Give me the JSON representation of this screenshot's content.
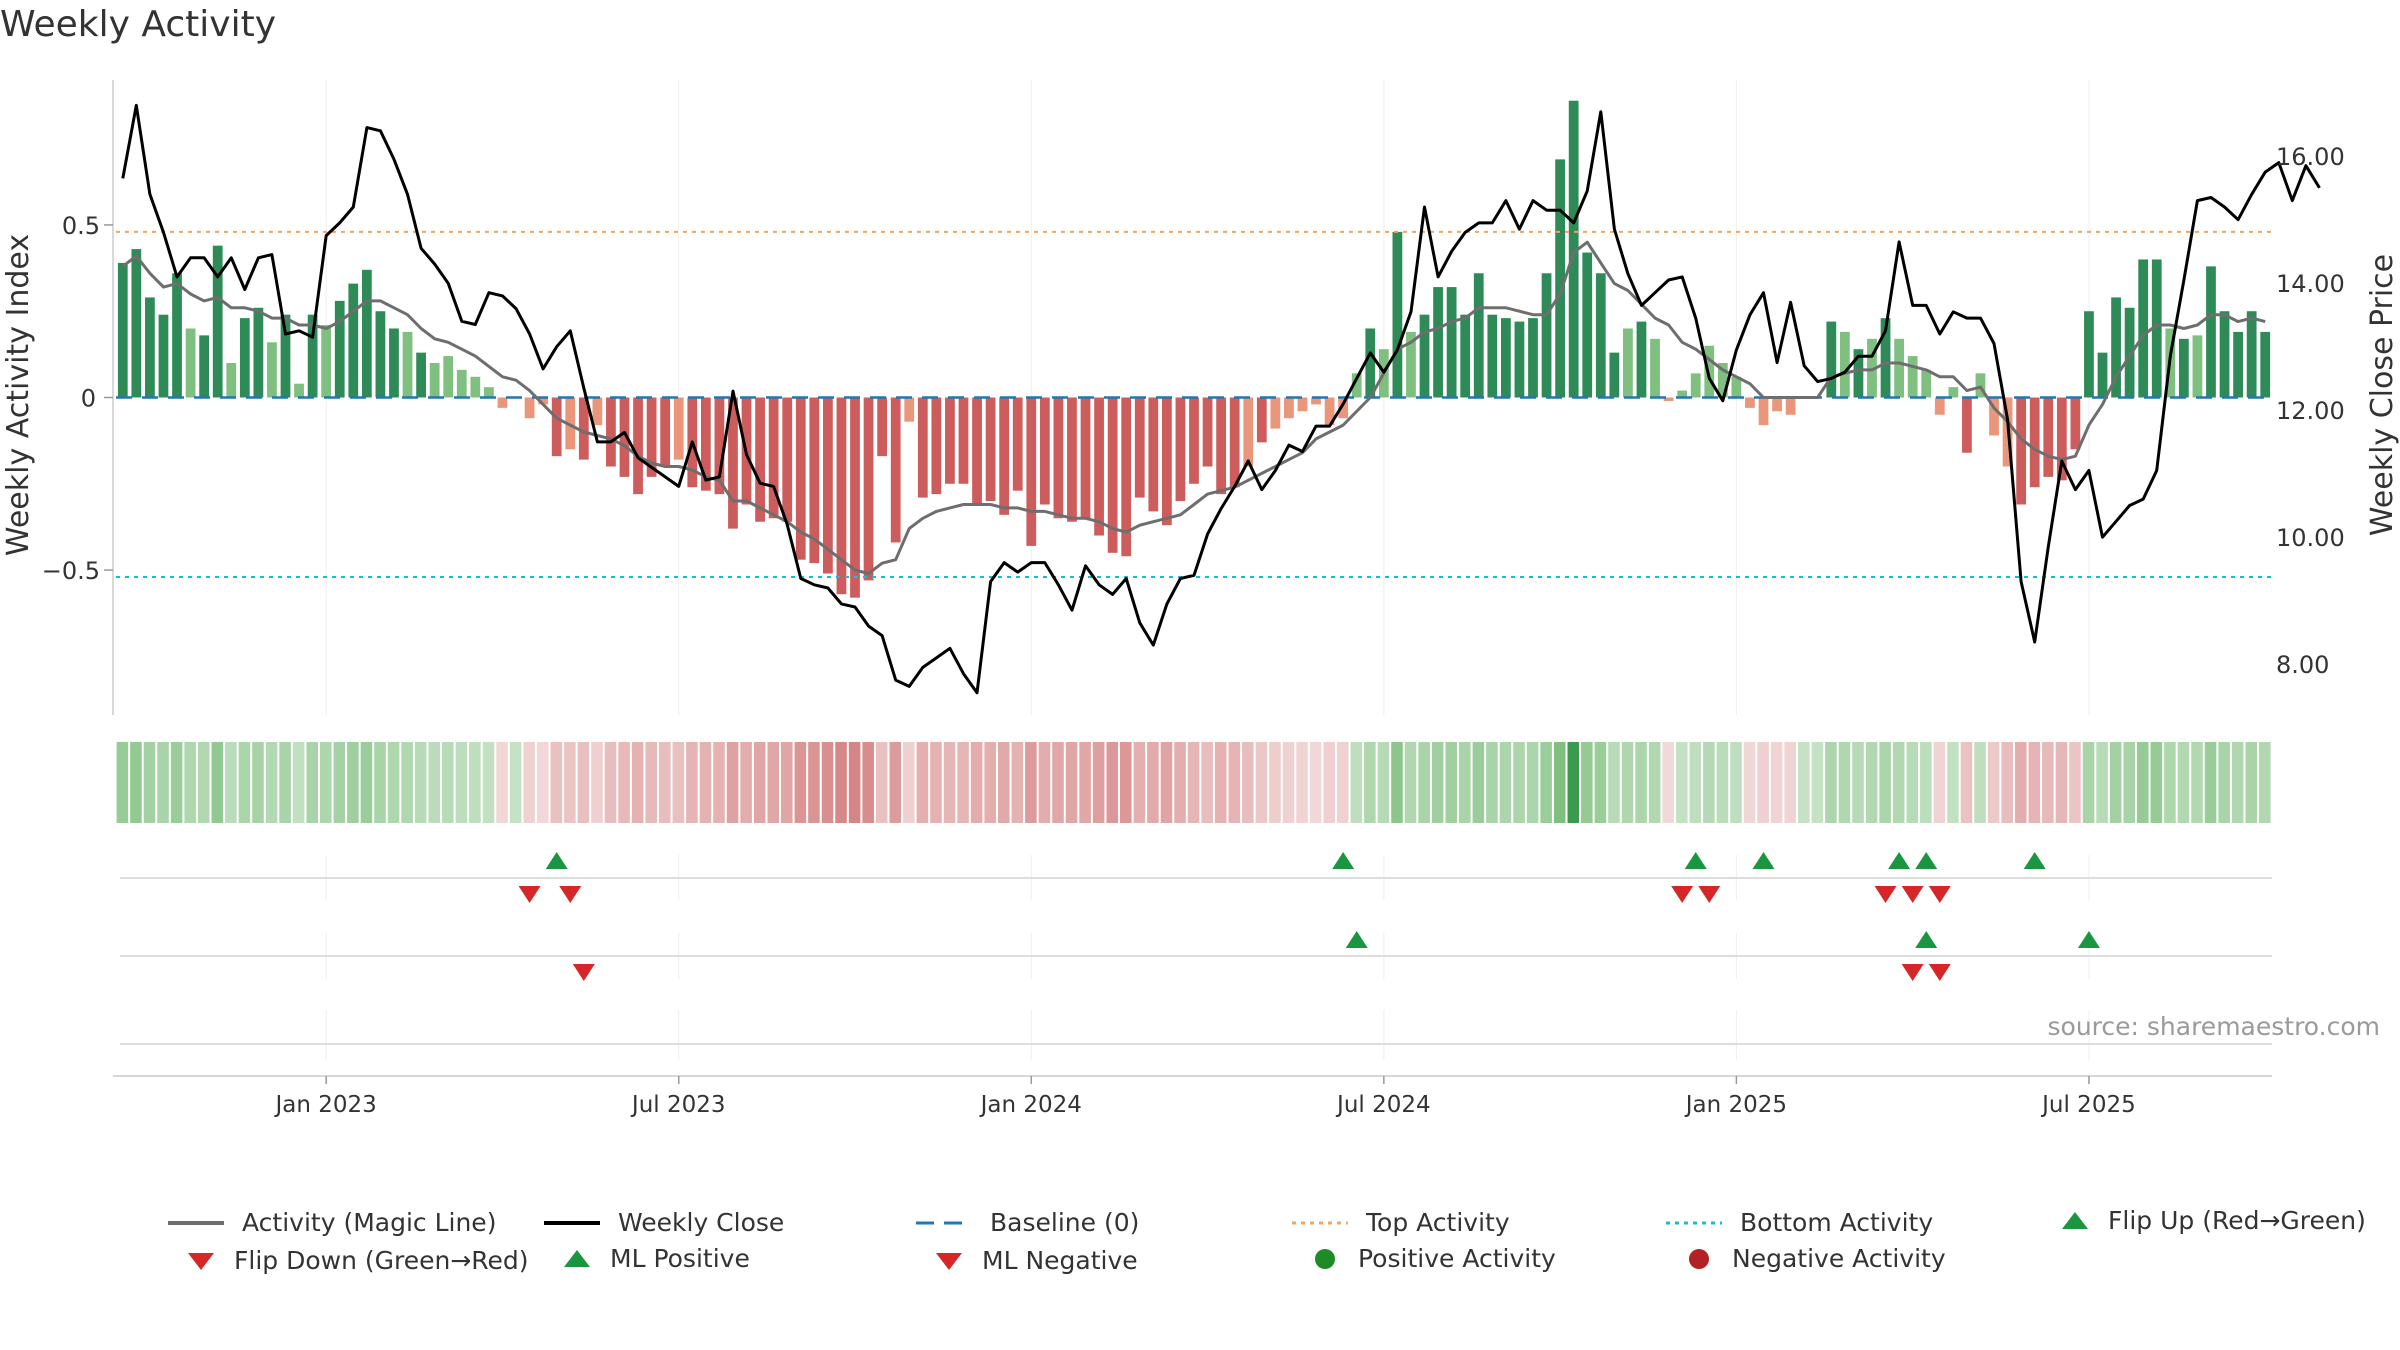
{
  "title": "Weekly Activity",
  "source": "source: sharemaestro.com",
  "chart_data": {
    "type": "bar",
    "title": "Weekly Activity",
    "ylabel_left": "Weekly Activity Index",
    "ylabel_right": "Weekly Close Price",
    "ylim_left": [
      -0.92,
      0.92
    ],
    "ylim_right": [
      7.2,
      17.2
    ],
    "left_ticks": [
      {
        "v": 0.5,
        "label": "0.5"
      },
      {
        "v": 0,
        "label": "0"
      },
      {
        "v": -0.5,
        "label": "−0.5"
      }
    ],
    "right_ticks": [
      {
        "v": 16,
        "label": "16.00"
      },
      {
        "v": 14,
        "label": "14.00"
      },
      {
        "v": 12,
        "label": "12.00"
      },
      {
        "v": 10,
        "label": "10.00"
      },
      {
        "v": 8,
        "label": "8.00"
      }
    ],
    "x_ticks": [
      {
        "i": 15,
        "label": "Jan 2023"
      },
      {
        "i": 41,
        "label": "Jul 2023"
      },
      {
        "i": 67,
        "label": "Jan 2024"
      },
      {
        "i": 93,
        "label": "Jul 2024"
      },
      {
        "i": 119,
        "label": "Jan 2025"
      },
      {
        "i": 145,
        "label": "Jul 2025"
      }
    ],
    "top_activity": 0.48,
    "bottom_activity": -0.52,
    "series": [
      {
        "name": "Weekly Activity Index",
        "kind": "bar",
        "values": [
          0.39,
          0.43,
          0.29,
          0.24,
          0.36,
          0.2,
          0.18,
          0.44,
          0.1,
          0.23,
          0.26,
          0.16,
          0.24,
          0.04,
          0.24,
          0.21,
          0.28,
          0.33,
          0.37,
          0.25,
          0.2,
          0.19,
          0.13,
          0.1,
          0.12,
          0.08,
          0.06,
          0.03,
          -0.03,
          0.0,
          -0.06,
          -0.02,
          -0.17,
          -0.15,
          -0.18,
          -0.08,
          -0.2,
          -0.23,
          -0.28,
          -0.23,
          -0.2,
          -0.18,
          -0.26,
          -0.27,
          -0.28,
          -0.38,
          -0.31,
          -0.36,
          -0.35,
          -0.36,
          -0.47,
          -0.48,
          -0.51,
          -0.57,
          -0.58,
          -0.53,
          -0.17,
          -0.42,
          -0.07,
          -0.29,
          -0.28,
          -0.25,
          -0.25,
          -0.31,
          -0.3,
          -0.34,
          -0.27,
          -0.43,
          -0.31,
          -0.35,
          -0.36,
          -0.35,
          -0.4,
          -0.45,
          -0.46,
          -0.29,
          -0.33,
          -0.37,
          -0.3,
          -0.25,
          -0.2,
          -0.28,
          -0.26,
          -0.2,
          -0.13,
          -0.09,
          -0.06,
          -0.04,
          -0.02,
          -0.08,
          -0.06,
          0.07,
          0.2,
          0.14,
          0.48,
          0.19,
          0.24,
          0.32,
          0.32,
          0.24,
          0.36,
          0.24,
          0.23,
          0.22,
          0.23,
          0.36,
          0.69,
          0.86,
          0.42,
          0.36,
          0.13,
          0.2,
          0.22,
          0.17,
          -0.01,
          0.02,
          0.07,
          0.15,
          0.1,
          0.06,
          -0.03,
          -0.08,
          -0.04,
          -0.05,
          0.0,
          0.0,
          0.22,
          0.19,
          0.14,
          0.17,
          0.23,
          0.17,
          0.12,
          0.08,
          -0.05,
          0.03,
          -0.16,
          0.07,
          -0.11,
          -0.2,
          -0.31,
          -0.26,
          -0.23,
          -0.24,
          -0.15,
          0.25,
          0.13,
          0.29,
          0.26,
          0.4,
          0.4,
          0.2,
          0.17,
          0.18,
          0.38,
          0.25,
          0.19,
          0.25,
          0.19
        ]
      },
      {
        "name": "Activity (Magic Line)",
        "kind": "line",
        "values": [
          0.38,
          0.41,
          0.36,
          0.32,
          0.33,
          0.3,
          0.28,
          0.29,
          0.26,
          0.26,
          0.25,
          0.23,
          0.23,
          0.21,
          0.21,
          0.2,
          0.22,
          0.25,
          0.28,
          0.28,
          0.26,
          0.24,
          0.2,
          0.17,
          0.16,
          0.14,
          0.12,
          0.09,
          0.06,
          0.05,
          0.02,
          -0.02,
          -0.06,
          -0.08,
          -0.1,
          -0.11,
          -0.12,
          -0.14,
          -0.17,
          -0.19,
          -0.2,
          -0.2,
          -0.21,
          -0.23,
          -0.24,
          -0.3,
          -0.3,
          -0.32,
          -0.34,
          -0.36,
          -0.39,
          -0.41,
          -0.44,
          -0.47,
          -0.5,
          -0.51,
          -0.48,
          -0.47,
          -0.38,
          -0.35,
          -0.33,
          -0.32,
          -0.31,
          -0.31,
          -0.31,
          -0.32,
          -0.32,
          -0.33,
          -0.33,
          -0.34,
          -0.35,
          -0.35,
          -0.36,
          -0.38,
          -0.39,
          -0.37,
          -0.36,
          -0.35,
          -0.34,
          -0.31,
          -0.28,
          -0.27,
          -0.26,
          -0.24,
          -0.22,
          -0.2,
          -0.18,
          -0.16,
          -0.12,
          -0.1,
          -0.08,
          -0.04,
          0.0,
          0.07,
          0.14,
          0.16,
          0.19,
          0.2,
          0.22,
          0.23,
          0.26,
          0.26,
          0.26,
          0.25,
          0.24,
          0.24,
          0.3,
          0.42,
          0.45,
          0.39,
          0.33,
          0.31,
          0.27,
          0.23,
          0.21,
          0.16,
          0.14,
          0.11,
          0.08,
          0.06,
          0.04,
          0.0,
          0.0,
          0.0,
          0.0,
          0.0,
          0.06,
          0.07,
          0.08,
          0.08,
          0.1,
          0.1,
          0.09,
          0.08,
          0.06,
          0.06,
          0.02,
          0.03,
          -0.03,
          -0.07,
          -0.12,
          -0.15,
          -0.17,
          -0.18,
          -0.17,
          -0.08,
          -0.02,
          0.06,
          0.12,
          0.18,
          0.21,
          0.21,
          0.2,
          0.21,
          0.24,
          0.24,
          0.22,
          0.23,
          0.22
        ]
      },
      {
        "name": "Weekly Close",
        "kind": "line",
        "values": [
          15.65,
          16.8,
          15.4,
          14.8,
          14.1,
          14.4,
          14.4,
          14.1,
          14.4,
          13.9,
          14.4,
          14.45,
          13.2,
          13.25,
          13.15,
          14.75,
          14.95,
          15.2,
          16.45,
          16.4,
          15.95,
          15.4,
          14.55,
          14.3,
          14.0,
          13.4,
          13.35,
          13.85,
          13.8,
          13.6,
          13.2,
          12.65,
          13.0,
          13.25,
          12.35,
          11.5,
          11.5,
          11.65,
          11.25,
          11.1,
          10.95,
          10.8,
          11.5,
          10.9,
          10.95,
          12.3,
          11.3,
          10.85,
          10.8,
          10.2,
          9.35,
          9.25,
          9.2,
          8.95,
          8.9,
          8.6,
          8.45,
          7.75,
          7.65,
          7.95,
          8.1,
          8.25,
          7.85,
          7.55,
          9.3,
          9.6,
          9.45,
          9.6,
          9.6,
          9.25,
          8.85,
          9.55,
          9.25,
          9.1,
          9.35,
          8.65,
          8.3,
          8.95,
          9.35,
          9.4,
          10.05,
          10.45,
          10.8,
          11.2,
          10.75,
          11.05,
          11.45,
          11.35,
          11.75,
          11.75,
          12.1,
          12.5,
          12.9,
          12.6,
          12.95,
          13.55,
          15.2,
          14.1,
          14.5,
          14.8,
          14.95,
          14.95,
          15.3,
          14.85,
          15.3,
          15.15,
          15.15,
          14.95,
          15.45,
          16.7,
          14.85,
          14.15,
          13.65,
          13.85,
          14.05,
          14.1,
          13.45,
          12.5,
          12.15,
          12.95,
          13.5,
          13.85,
          12.75,
          13.7,
          12.7,
          12.45,
          12.5,
          12.6,
          12.85,
          12.85,
          13.25,
          14.65,
          13.65,
          13.65,
          13.2,
          13.55,
          13.45,
          13.45,
          13.05,
          11.85,
          9.3,
          8.35,
          9.85,
          11.2,
          10.75,
          11.05,
          10.0,
          10.25,
          10.5,
          10.6,
          11.05,
          12.85,
          14.05,
          15.3,
          15.35,
          15.2,
          15.0,
          15.4,
          15.75,
          15.9,
          15.3,
          15.85,
          15.5
        ]
      }
    ],
    "heat_strip_values": [
      0.39,
      0.43,
      0.29,
      0.24,
      0.36,
      0.2,
      0.18,
      0.44,
      0.1,
      0.23,
      0.26,
      0.16,
      0.24,
      0.04,
      0.24,
      0.21,
      0.28,
      0.33,
      0.37,
      0.25,
      0.2,
      0.19,
      0.13,
      0.1,
      0.12,
      0.08,
      0.06,
      0.03,
      -0.03,
      0.0,
      -0.06,
      -0.02,
      -0.17,
      -0.15,
      -0.18,
      -0.08,
      -0.2,
      -0.23,
      -0.28,
      -0.23,
      -0.2,
      -0.18,
      -0.26,
      -0.27,
      -0.28,
      -0.38,
      -0.31,
      -0.36,
      -0.35,
      -0.36,
      -0.47,
      -0.48,
      -0.51,
      -0.57,
      -0.58,
      -0.53,
      -0.17,
      -0.42,
      -0.07,
      -0.29,
      -0.28,
      -0.25,
      -0.25,
      -0.31,
      -0.3,
      -0.34,
      -0.27,
      -0.43,
      -0.31,
      -0.35,
      -0.36,
      -0.35,
      -0.4,
      -0.45,
      -0.46,
      -0.29,
      -0.33,
      -0.37,
      -0.3,
      -0.25,
      -0.2,
      -0.28,
      -0.26,
      -0.2,
      -0.13,
      -0.09,
      -0.06,
      -0.04,
      -0.02,
      -0.08,
      -0.06,
      0.07,
      0.2,
      0.14,
      0.48,
      0.19,
      0.24,
      0.32,
      0.32,
      0.24,
      0.36,
      0.24,
      0.23,
      0.22,
      0.23,
      0.36,
      0.69,
      0.86,
      0.42,
      0.36,
      0.13,
      0.2,
      0.22,
      0.17,
      -0.01,
      0.02,
      0.07,
      0.15,
      0.1,
      0.06,
      -0.03,
      -0.08,
      -0.04,
      -0.05,
      0.0,
      0.0,
      0.22,
      0.19,
      0.14,
      0.17,
      0.23,
      0.17,
      0.12,
      0.08,
      -0.05,
      0.03,
      -0.16,
      0.07,
      -0.11,
      -0.2,
      -0.31,
      -0.26,
      -0.23,
      -0.24,
      -0.15,
      0.25,
      0.13,
      0.29,
      0.26,
      0.4,
      0.4,
      0.2,
      0.17,
      0.18,
      0.38,
      0.25,
      0.19,
      0.25,
      0.19
    ],
    "flip_up_weeks": [
      32,
      90,
      116,
      121,
      131,
      133,
      141
    ],
    "flip_down_weeks": [
      30,
      33,
      115,
      117,
      130,
      132,
      134
    ],
    "ml_positive_weeks": [
      91,
      133,
      145
    ],
    "ml_negative_weeks": [
      34,
      132,
      134
    ],
    "positive_activity_weeks": [],
    "negative_activity_weeks": []
  },
  "legend": [
    {
      "label": "Activity (Magic Line)",
      "symbol": "line",
      "color": "#6e6e6e"
    },
    {
      "label": "Weekly Close",
      "symbol": "line",
      "color": "#000000"
    },
    {
      "label": "Baseline (0)",
      "symbol": "dash",
      "color": "#1f77b4"
    },
    {
      "label": "Top Activity",
      "symbol": "dot",
      "color": "#f4a460"
    },
    {
      "label": "Bottom Activity",
      "symbol": "dot",
      "color": "#17becf"
    },
    {
      "label": "Flip Up (Red→Green)",
      "symbol": "tri-up",
      "color": "#1a9641"
    },
    {
      "label": "Flip Down (Green→Red)",
      "symbol": "tri-down",
      "color": "#d62728"
    },
    {
      "label": "ML Positive",
      "symbol": "tri-up",
      "color": "#1a9641"
    },
    {
      "label": "ML Negative",
      "symbol": "tri-down",
      "color": "#d62728"
    },
    {
      "label": "Positive Activity",
      "symbol": "circle",
      "color": "#1f8b24"
    },
    {
      "label": "Negative Activity",
      "symbol": "circle",
      "color": "#b22222"
    }
  ],
  "colors": {
    "pos_strong": "#2e8b57",
    "pos_light": "#7fbf7f",
    "neg_strong": "#cd5c5c",
    "neg_light": "#e9967a",
    "up_marker": "#1a9641",
    "down_marker": "#d62728",
    "magic_line": "#6e6e6e",
    "close_line": "#000000",
    "baseline": "#1f77b4",
    "top_line": "#f4a460",
    "bottom_line": "#17becf"
  }
}
